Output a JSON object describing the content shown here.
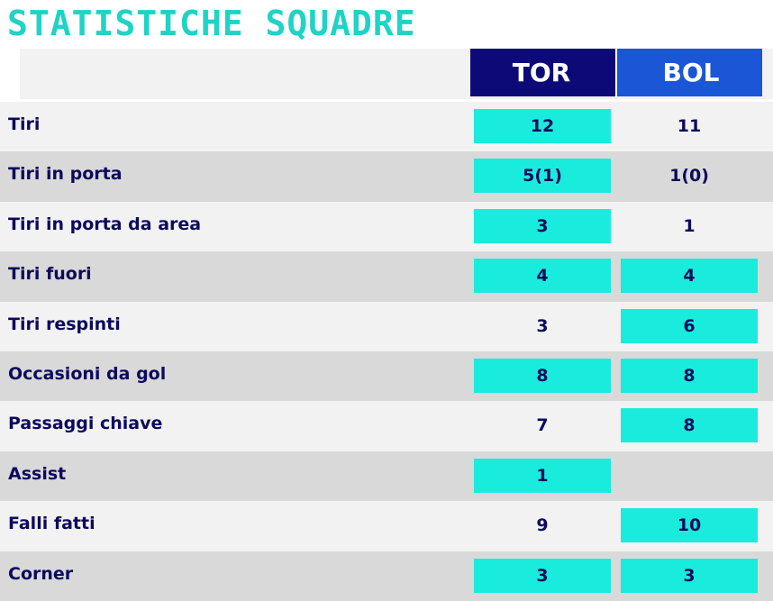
{
  "title": "STATISTICHE SQUADRE",
  "teams": {
    "home": "TOR",
    "away": "BOL"
  },
  "colors": {
    "title": "#1fd3c6",
    "home_header": "#0d0a78",
    "away_header": "#1a56d6",
    "highlight": "#19ecdc",
    "text": "#0d0a5c"
  },
  "rows": [
    {
      "label": "Tiri",
      "home": "12",
      "away": "11",
      "home_hl": true,
      "away_hl": false
    },
    {
      "label": "Tiri in porta",
      "home": "5(1)",
      "away": "1(0)",
      "home_hl": true,
      "away_hl": false
    },
    {
      "label": "Tiri in porta da area",
      "home": "3",
      "away": "1",
      "home_hl": true,
      "away_hl": false
    },
    {
      "label": "Tiri fuori",
      "home": "4",
      "away": "4",
      "home_hl": true,
      "away_hl": true
    },
    {
      "label": "Tiri respinti",
      "home": "3",
      "away": "6",
      "home_hl": false,
      "away_hl": true
    },
    {
      "label": "Occasioni da gol",
      "home": "8",
      "away": "8",
      "home_hl": true,
      "away_hl": true
    },
    {
      "label": "Passaggi chiave",
      "home": "7",
      "away": "8",
      "home_hl": false,
      "away_hl": true
    },
    {
      "label": "Assist",
      "home": "1",
      "away": "",
      "home_hl": true,
      "away_hl": false
    },
    {
      "label": "Falli fatti",
      "home": "9",
      "away": "10",
      "home_hl": false,
      "away_hl": true
    },
    {
      "label": "Corner",
      "home": "3",
      "away": "3",
      "home_hl": true,
      "away_hl": true
    }
  ]
}
